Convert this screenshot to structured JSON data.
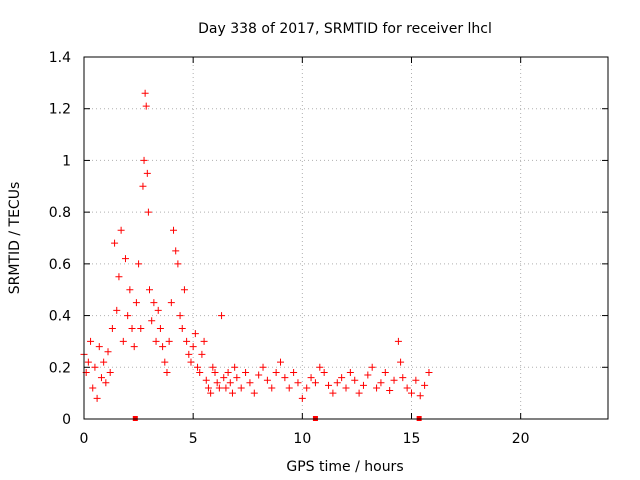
{
  "chart_data": {
    "type": "scatter",
    "title": "Day 338 of 2017, SRMTID for receiver lhcl",
    "xlabel": "GPS time / hours",
    "ylabel": "SRMTID / TECUs",
    "xlim": [
      0,
      24
    ],
    "ylim": [
      0,
      1.4
    ],
    "xticks": [
      0,
      5,
      10,
      15,
      20
    ],
    "xtick_labels": [
      "0",
      "5",
      "10",
      "15",
      "20"
    ],
    "yticks": [
      0,
      0.2,
      0.4,
      0.6,
      0.8,
      1.0,
      1.2,
      1.4
    ],
    "ytick_labels": [
      "0",
      "0.2",
      "0.4",
      "0.6",
      "0.8",
      "1",
      "1.2",
      "1.4"
    ],
    "grid": true,
    "marker": "+",
    "color": "#ff0000",
    "series": [
      {
        "name": "SRMTID",
        "x": [
          0.0,
          0.1,
          0.2,
          0.3,
          0.4,
          0.5,
          0.6,
          0.7,
          0.8,
          0.9,
          1.0,
          1.1,
          1.2,
          1.3,
          1.4,
          1.5,
          1.6,
          1.7,
          1.8,
          1.9,
          2.0,
          2.1,
          2.2,
          2.3,
          2.4,
          2.5,
          2.6,
          2.7,
          2.75,
          2.8,
          2.85,
          2.9,
          2.95,
          3.0,
          3.1,
          3.2,
          3.3,
          3.4,
          3.5,
          3.6,
          3.7,
          3.8,
          3.9,
          4.0,
          4.1,
          4.2,
          4.3,
          4.4,
          4.5,
          4.6,
          4.7,
          4.8,
          4.9,
          5.0,
          5.1,
          5.2,
          5.3,
          5.4,
          5.5,
          5.6,
          5.7,
          5.8,
          5.9,
          6.0,
          6.1,
          6.2,
          6.3,
          6.4,
          6.5,
          6.6,
          6.7,
          6.8,
          6.9,
          7.0,
          7.2,
          7.4,
          7.6,
          7.8,
          8.0,
          8.2,
          8.4,
          8.6,
          8.8,
          9.0,
          9.2,
          9.4,
          9.6,
          9.8,
          10.0,
          10.2,
          10.4,
          10.6,
          10.8,
          11.0,
          11.2,
          11.4,
          11.6,
          11.8,
          12.0,
          12.2,
          12.4,
          12.6,
          12.8,
          13.0,
          13.2,
          13.4,
          13.6,
          13.8,
          14.0,
          14.2,
          14.4,
          14.5,
          14.6,
          14.8,
          15.0,
          15.2,
          15.4,
          15.6,
          15.8
        ],
        "y": [
          0.25,
          0.18,
          0.22,
          0.3,
          0.12,
          0.2,
          0.08,
          0.28,
          0.16,
          0.22,
          0.14,
          0.26,
          0.18,
          0.35,
          0.68,
          0.42,
          0.55,
          0.73,
          0.3,
          0.62,
          0.4,
          0.5,
          0.35,
          0.28,
          0.45,
          0.6,
          0.35,
          0.9,
          1.0,
          1.26,
          1.21,
          0.95,
          0.8,
          0.5,
          0.38,
          0.45,
          0.3,
          0.42,
          0.35,
          0.28,
          0.22,
          0.18,
          0.3,
          0.45,
          0.73,
          0.65,
          0.6,
          0.4,
          0.35,
          0.5,
          0.3,
          0.25,
          0.22,
          0.28,
          0.33,
          0.2,
          0.18,
          0.25,
          0.3,
          0.15,
          0.12,
          0.1,
          0.2,
          0.18,
          0.14,
          0.12,
          0.4,
          0.16,
          0.12,
          0.18,
          0.14,
          0.1,
          0.2,
          0.16,
          0.12,
          0.18,
          0.14,
          0.1,
          0.17,
          0.2,
          0.15,
          0.12,
          0.18,
          0.22,
          0.16,
          0.12,
          0.18,
          0.14,
          0.08,
          0.12,
          0.16,
          0.14,
          0.2,
          0.18,
          0.13,
          0.1,
          0.14,
          0.16,
          0.12,
          0.18,
          0.15,
          0.1,
          0.13,
          0.17,
          0.2,
          0.12,
          0.14,
          0.18,
          0.11,
          0.15,
          0.3,
          0.22,
          0.16,
          0.12,
          0.1,
          0.15,
          0.09,
          0.13,
          0.18
        ]
      }
    ],
    "gaps_on_axis": [
      2.35,
      10.6,
      15.35
    ]
  }
}
